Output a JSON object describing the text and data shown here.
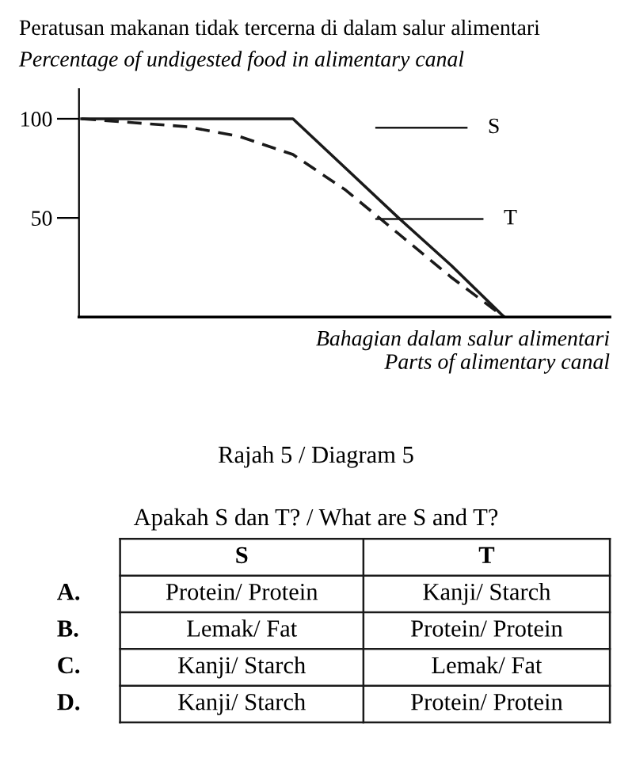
{
  "chart_data": {
    "type": "line",
    "title": "Peratusan makanan tidak tercerna di dalam salur alimentari",
    "subtitle": "Percentage of undigested food in alimentary canal",
    "xlabel": "Bahagian dalam salur alimentari\nParts of alimentary canal",
    "categories": [
      null,
      null,
      null,
      null,
      null,
      null,
      null,
      null,
      null,
      null,
      null
    ],
    "series": [
      {
        "color": "#1a1a1a",
        "line_style": "solid",
        "values": [
          100,
          100,
          100,
          100,
          100,
          75,
          50,
          26,
          0,
          null,
          null
        ]
      },
      {
        "color": "#1a1a1a",
        "line_style": "dashed",
        "values": [
          100,
          98,
          96,
          91,
          82,
          64,
          42,
          20,
          0,
          null,
          null
        ]
      }
    ],
    "ylim": [
      0,
      115
    ],
    "yticks": [
      50,
      100
    ],
    "grid": false,
    "marker": "none",
    "tick_labels": "y",
    "annotations": [
      "S",
      "T",
      "Rajah 5 / Diagram 5",
      "Apakah S dan T? / What are S and T?",
      "S",
      "T",
      "A.",
      "Protein/ Protein",
      "Kanji/ Starch",
      "B.",
      "Lemak/ Fat",
      "Protein/ Protein",
      "C.",
      "Kanji/ Starch",
      "Lemak/ Fat",
      "D.",
      "Kanji/ Starch",
      "Protein/ Protein"
    ]
  }
}
